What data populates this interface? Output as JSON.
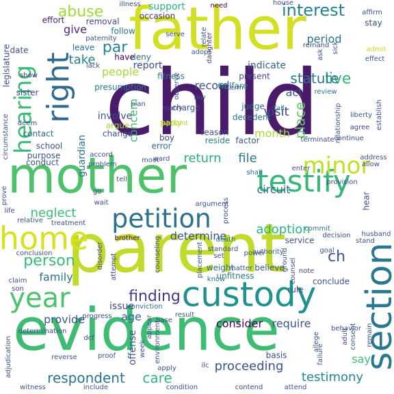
{
  "words": [
    {
      "text": "child",
      "color": "#4a1a6b"
    },
    {
      "text": "father",
      "color": "#d2df22"
    },
    {
      "text": "parent",
      "color": "#c1da2c"
    },
    {
      "text": "mother",
      "color": "#4ec16b"
    },
    {
      "text": "evidence",
      "color": "#3fbc73"
    },
    {
      "text": "custody",
      "color": "#20928c"
    },
    {
      "text": "testify",
      "color": "#35b778"
    },
    {
      "text": "home",
      "color": "#d7e21f"
    },
    {
      "text": "hearing",
      "color": "#3aba76"
    },
    {
      "text": "right",
      "color": "#31688e"
    },
    {
      "text": "year",
      "color": "#4cc26c"
    },
    {
      "text": "section",
      "color": "#2a788e"
    },
    {
      "text": "minor",
      "color": "#c2df23"
    },
    {
      "text": "petition",
      "color": "#2d718e"
    },
    {
      "text": "interest",
      "color": "#26828e"
    },
    {
      "text": "person",
      "color": "#38b977"
    },
    {
      "text": "respondent",
      "color": "#2c728e"
    },
    {
      "text": "care",
      "color": "#31b57b"
    },
    {
      "text": "proceeding",
      "color": "#3b528b"
    },
    {
      "text": "testimony",
      "color": "#23898e"
    },
    {
      "text": "finding",
      "color": "#443a83"
    },
    {
      "text": "abuse",
      "color": "#a0da39"
    },
    {
      "text": "neglect",
      "color": "#3bbb75"
    },
    {
      "text": "live",
      "color": "#32b67a"
    },
    {
      "text": "statute",
      "color": "#2b758e"
    },
    {
      "text": "visit",
      "color": "#3e4a89"
    },
    {
      "text": "place",
      "color": "#5ec962"
    },
    {
      "text": "month",
      "color": "#a5db36"
    },
    {
      "text": "family",
      "color": "#2d708e"
    },
    {
      "text": "adoption",
      "color": "#2db27d"
    },
    {
      "text": "determine",
      "color": "#3b528b"
    },
    {
      "text": "record",
      "color": "#3e4c8a"
    },
    {
      "text": "take",
      "color": "#277f8e"
    },
    {
      "text": "people",
      "color": "#a2da37"
    },
    {
      "text": "par",
      "color": "#25838e"
    },
    {
      "text": "give",
      "color": "#482677"
    },
    {
      "text": "report",
      "color": "#3e4a89"
    },
    {
      "text": "indicate",
      "color": "#35608d"
    },
    {
      "text": "period",
      "color": "#2c738e"
    },
    {
      "text": "act",
      "color": "#3c4f8a"
    },
    {
      "text": "file",
      "color": "#2a768e"
    },
    {
      "text": "return",
      "color": "#29af7f"
    },
    {
      "text": "circuit",
      "color": "#31668e"
    },
    {
      "text": "provide",
      "color": "#38588c"
    },
    {
      "text": "consider",
      "color": "#440154"
    },
    {
      "text": "require",
      "color": "#3a548c"
    },
    {
      "text": "age",
      "color": "#32648e"
    },
    {
      "text": "issue",
      "color": "#3f4788"
    },
    {
      "text": "say",
      "color": "#3dbc74"
    },
    {
      "text": "support",
      "color": "#2eb37c"
    },
    {
      "text": "guardian",
      "color": "#2c738e"
    },
    {
      "text": "concern",
      "color": "#3fbc73"
    },
    {
      "text": "involve",
      "color": "#3b528b"
    },
    {
      "text": "ch",
      "color": "#3b528b"
    },
    {
      "text": "effort",
      "color": "#481f70"
    },
    {
      "text": "need",
      "color": "#440154"
    },
    {
      "text": "removal",
      "color": "#3e4a89"
    },
    {
      "text": "follow",
      "color": "#2c728e"
    },
    {
      "text": "occasion",
      "color": "#46317e"
    },
    {
      "text": "legislature",
      "color": "#3f4889"
    },
    {
      "text": "date",
      "color": "#3e4a89"
    },
    {
      "text": "leave",
      "color": "#2f6c8e"
    },
    {
      "text": "have",
      "color": "#440154"
    },
    {
      "text": "deny",
      "color": "#2f6b8e"
    },
    {
      "text": "relate",
      "color": "#3b528b"
    },
    {
      "text": "daughter",
      "color": "#46327e"
    },
    {
      "text": "fitness",
      "color": "#2d718e"
    },
    {
      "text": "welfare",
      "color": "#238a8d"
    },
    {
      "text": "present",
      "color": "#3e4a89"
    },
    {
      "text": "show",
      "color": "#46327e"
    },
    {
      "text": "sister",
      "color": "#3f4889"
    },
    {
      "text": "presumption",
      "color": "#2a788e"
    },
    {
      "text": "law",
      "color": "#3b528b"
    },
    {
      "text": "charge",
      "color": "#3b528b"
    },
    {
      "text": "judge",
      "color": "#2c728e"
    },
    {
      "text": "fail",
      "color": "#26828e"
    },
    {
      "text": "term",
      "color": "#3e4a89"
    },
    {
      "text": "review",
      "color": "#2d718e"
    },
    {
      "text": "decedent",
      "color": "#2c728e"
    },
    {
      "text": "party",
      "color": "#c8e020"
    },
    {
      "text": "appoint",
      "color": "#a8db34"
    },
    {
      "text": "argue",
      "color": "#a8db34"
    },
    {
      "text": "change",
      "color": "#3b528b"
    },
    {
      "text": "reason",
      "color": "#3b528b"
    },
    {
      "text": "reside",
      "color": "#26828e"
    },
    {
      "text": "factor",
      "color": "#3b528b"
    },
    {
      "text": "boy",
      "color": "#3e4a89"
    },
    {
      "text": "error",
      "color": "#2f6c8e"
    },
    {
      "text": "school",
      "color": "#3b528b"
    },
    {
      "text": "contact",
      "color": "#2f6c8e"
    },
    {
      "text": "purpose",
      "color": "#3b528b"
    },
    {
      "text": "conduct",
      "color": "#3e4a89"
    },
    {
      "text": "ward",
      "color": "#3e4a89"
    },
    {
      "text": "shall",
      "color": "#2f6c8e"
    },
    {
      "text": "enter",
      "color": "#3b528b"
    },
    {
      "text": "allow",
      "color": "#3b528b"
    },
    {
      "text": "process",
      "color": "#3e4a89"
    },
    {
      "text": "brother",
      "color": "#440154"
    },
    {
      "text": "death",
      "color": "#2c728e"
    },
    {
      "text": "service",
      "color": "#3b528b"
    },
    {
      "text": "decision",
      "color": "#3e4a89"
    },
    {
      "text": "commit",
      "color": "#2c728e"
    },
    {
      "text": "stand",
      "color": "#3b528b"
    },
    {
      "text": "husband",
      "color": "#3b528b"
    },
    {
      "text": "set",
      "color": "#3e4a89"
    },
    {
      "text": "weight",
      "color": "#2c728e"
    },
    {
      "text": "matter",
      "color": "#3b528b"
    },
    {
      "text": "believe",
      "color": "#3b528b"
    },
    {
      "text": "unfitness",
      "color": "#2a788e"
    },
    {
      "text": "know",
      "color": "#2c728e"
    },
    {
      "text": "note",
      "color": "#3e4a89"
    },
    {
      "text": "conclude",
      "color": "#3b528b"
    },
    {
      "text": "rule",
      "color": "#3e4a89"
    },
    {
      "text": "conviction",
      "color": "#2f6c8e"
    },
    {
      "text": "result",
      "color": "#3b528b"
    },
    {
      "text": "base",
      "color": "#3e4a89"
    },
    {
      "text": "claim",
      "color": "#3b528b"
    },
    {
      "text": "son",
      "color": "#3e4a89"
    },
    {
      "text": "attempt",
      "color": "#3e4a89"
    },
    {
      "text": "placement",
      "color": "#3b528b"
    },
    {
      "text": "ground",
      "color": "#3b528b"
    },
    {
      "text": "determination",
      "color": "#3e4a89"
    },
    {
      "text": "appear",
      "color": "#3b528b"
    },
    {
      "text": "offense",
      "color": "#3b528b"
    },
    {
      "text": "environment",
      "color": "#3b528b"
    },
    {
      "text": "proof",
      "color": "#3b528b"
    },
    {
      "text": "dcf",
      "color": "#3e4a89"
    },
    {
      "text": "reverse",
      "color": "#3b528b"
    },
    {
      "text": "basis",
      "color": "#3e4a89"
    },
    {
      "text": "allege",
      "color": "#3b528b"
    },
    {
      "text": "adult",
      "color": "#3e4a89"
    },
    {
      "text": "consent",
      "color": "#3b528b"
    },
    {
      "text": "remain",
      "color": "#3b528b"
    },
    {
      "text": "apply",
      "color": "#3b528b"
    },
    {
      "text": "condition",
      "color": "#3e4a89"
    },
    {
      "text": "include",
      "color": "#3b528b"
    },
    {
      "text": "witness",
      "color": "#3b528b"
    },
    {
      "text": "adjudication",
      "color": "#3b528b"
    },
    {
      "text": "contend",
      "color": "#3e4a89"
    },
    {
      "text": "attend",
      "color": "#3b528b"
    },
    {
      "text": "ilc",
      "color": "#3e4a89"
    },
    {
      "text": "life",
      "color": "#3e4a89"
    },
    {
      "text": "go",
      "color": "#3e4a89"
    },
    {
      "text": "tell",
      "color": "#3b528b"
    },
    {
      "text": "hear",
      "color": "#3e4a89"
    },
    {
      "text": "prove",
      "color": "#3b528b"
    },
    {
      "text": "week",
      "color": "#3b528b"
    },
    {
      "text": "establish",
      "color": "#3e4a89"
    },
    {
      "text": "liberty",
      "color": "#3b528b"
    },
    {
      "text": "agree",
      "color": "#3e4a89"
    },
    {
      "text": "address",
      "color": "#3b528b"
    },
    {
      "text": "relationship",
      "color": "#3b528b"
    },
    {
      "text": "circumstance",
      "color": "#3b528b"
    },
    {
      "text": "stay",
      "color": "#3e4a89"
    },
    {
      "text": "admit",
      "color": "#c8e020"
    },
    {
      "text": "effect",
      "color": "#3b528b"
    },
    {
      "text": "observe",
      "color": "#3e4a89"
    },
    {
      "text": "marry",
      "color": "#3b528b"
    },
    {
      "text": "remand",
      "color": "#3e4a89"
    },
    {
      "text": "ask",
      "color": "#3b528b"
    },
    {
      "text": "house",
      "color": "#3e4a89"
    },
    {
      "text": "affirm",
      "color": "#3b528b"
    },
    {
      "text": "lack",
      "color": "#3e4a89"
    },
    {
      "text": "deem",
      "color": "#3e4a89"
    },
    {
      "text": "paternity",
      "color": "#3b528b"
    },
    {
      "text": "serve",
      "color": "#3b528b"
    },
    {
      "text": "adopt",
      "color": "#3b528b"
    },
    {
      "text": "illness",
      "color": "#3e4a89"
    },
    {
      "text": "sick",
      "color": "#3b528b"
    },
    {
      "text": "plan",
      "color": "#3b528b"
    },
    {
      "text": "accord",
      "color": "#3e4a89"
    },
    {
      "text": "problem",
      "color": "#3b528b"
    },
    {
      "text": "moot",
      "color": "#3b528b"
    },
    {
      "text": "provision",
      "color": "#3e4a89"
    },
    {
      "text": "argument",
      "color": "#3b528b"
    },
    {
      "text": "wait",
      "color": "#3e4a89"
    },
    {
      "text": "relative",
      "color": "#3b528b"
    },
    {
      "text": "treatment",
      "color": "#3e4a89"
    },
    {
      "text": "standard",
      "color": "#3b528b"
    },
    {
      "text": "power",
      "color": "#3e4a89"
    },
    {
      "text": "goal",
      "color": "#3b528b"
    },
    {
      "text": "counsel",
      "color": "#3e4a89"
    },
    {
      "text": "behavior",
      "color": "#3b528b"
    },
    {
      "text": "progress",
      "color": "#3e4a89"
    },
    {
      "text": "conclusion",
      "color": "#3b528b"
    },
    {
      "text": "disorder",
      "color": "#3e4a89"
    },
    {
      "text": "authority",
      "color": "#3b528b"
    },
    {
      "text": "counseling",
      "color": "#3e4a89"
    },
    {
      "text": "failure",
      "color": "#3b528b"
    },
    {
      "text": "terminate",
      "color": "#3e4a89"
    },
    {
      "text": "continue",
      "color": "#3b528b"
    }
  ]
}
